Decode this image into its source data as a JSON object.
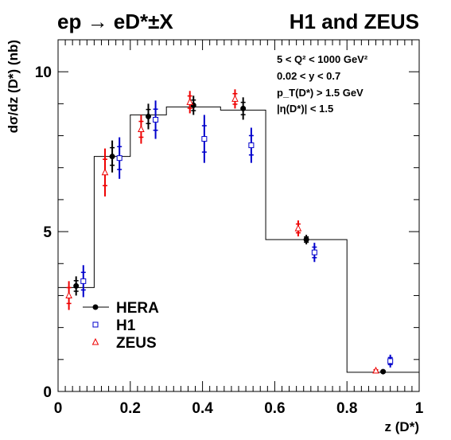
{
  "titles": {
    "process": "ep → eD*±X",
    "collab": "H1 and ZEUS"
  },
  "cuts": [
    "5 < Q² < 1000 GeV²",
    "0.02 < y < 0.7",
    "p_T(D*) > 1.5 GeV",
    "|η(D*)| < 1.5"
  ],
  "chart_data": {
    "type": "scatter",
    "xlabel": "z (D*)",
    "ylabel": "dσ/dz (D*) (nb)",
    "xlim": [
      0,
      1
    ],
    "ylim": [
      0,
      11
    ],
    "x_ticks": [
      "0",
      "0.2",
      "0.4",
      "0.6",
      "0.8",
      "1"
    ],
    "x_tick_values": [
      0,
      0.2,
      0.4,
      0.6,
      0.8,
      1.0
    ],
    "y_ticks": [
      "0",
      "5",
      "10"
    ],
    "y_tick_values": [
      0,
      5,
      10
    ],
    "grid": false,
    "legend_position": "bottom-left",
    "theory_histogram": {
      "bins": [
        [
          0,
          0.1
        ],
        [
          0.1,
          0.2
        ],
        [
          0.2,
          0.3
        ],
        [
          0.3,
          0.45
        ],
        [
          0.45,
          0.575
        ],
        [
          0.575,
          0.8
        ],
        [
          0.8,
          1.0
        ]
      ],
      "values": [
        3.25,
        7.35,
        8.65,
        8.9,
        8.8,
        4.75,
        0.6
      ],
      "color": "#000000"
    },
    "series": [
      {
        "name": "HERA",
        "color": "#000000",
        "marker": "filled-circle",
        "x": [
          0.05,
          0.15,
          0.25,
          0.375,
          0.5125,
          0.6875,
          0.9
        ],
        "y": [
          3.3,
          7.35,
          8.6,
          8.95,
          8.85,
          4.75,
          0.62
        ],
        "err": [
          0.3,
          0.5,
          0.4,
          0.3,
          0.35,
          0.15,
          0.05
        ]
      },
      {
        "name": "H1",
        "color": "#0000cc",
        "marker": "open-square",
        "x": [
          0.07,
          0.17,
          0.27,
          0.405,
          0.535,
          0.71,
          0.92
        ],
        "y": [
          3.45,
          7.3,
          8.5,
          7.9,
          7.7,
          4.35,
          0.95
        ],
        "err": [
          0.5,
          0.65,
          0.6,
          0.75,
          0.55,
          0.3,
          0.2
        ]
      },
      {
        "name": "ZEUS",
        "color": "#ee0000",
        "marker": "open-triangle",
        "x": [
          0.03,
          0.13,
          0.23,
          0.365,
          0.49,
          0.665,
          0.88
        ],
        "y": [
          3.0,
          6.85,
          8.2,
          9.05,
          9.15,
          5.1,
          0.65
        ],
        "err": [
          0.45,
          0.75,
          0.45,
          0.35,
          0.3,
          0.25,
          0.05
        ]
      }
    ]
  }
}
